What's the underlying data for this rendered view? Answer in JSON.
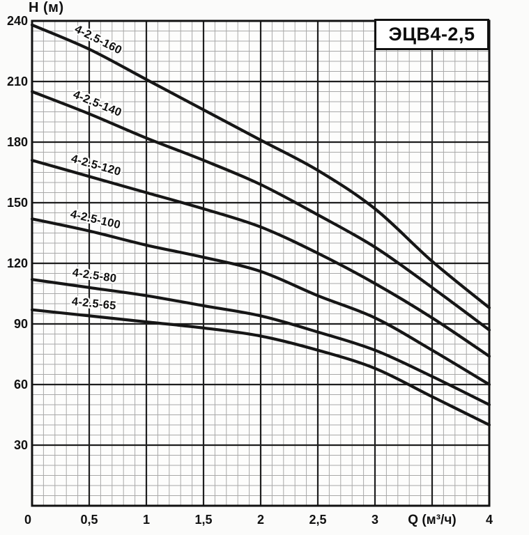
{
  "chart_data": {
    "type": "line",
    "title": "ЭЦВ4-2,5",
    "xlabel": "Q (м³/ч)",
    "ylabel": "H (м)",
    "x": [
      0,
      0.5,
      1,
      1.5,
      2,
      2.5,
      3,
      3.5,
      4
    ],
    "series": [
      {
        "name": "4-2.5-160",
        "values": [
          238,
          226,
          211,
          196,
          181,
          166,
          147,
          121,
          98
        ]
      },
      {
        "name": "4-2.5-140",
        "values": [
          205,
          194,
          182,
          171,
          159,
          144,
          128,
          108,
          87
        ]
      },
      {
        "name": "4-2.5-120",
        "values": [
          171,
          163,
          155,
          147,
          138,
          125,
          110,
          93,
          74
        ]
      },
      {
        "name": "4-2.5-100",
        "values": [
          142,
          136,
          129,
          123,
          116,
          104,
          93,
          77,
          60
        ]
      },
      {
        "name": "4-2.5-80",
        "values": [
          112,
          108,
          104,
          99,
          94,
          86,
          77,
          64,
          50
        ]
      },
      {
        "name": "4-2.5-65",
        "values": [
          97,
          94,
          91,
          88,
          84,
          77,
          68,
          54,
          40
        ]
      }
    ],
    "xlim": [
      0,
      4
    ],
    "ylim": [
      0,
      240
    ],
    "x_ticks": [
      {
        "v": 0,
        "label": "0"
      },
      {
        "v": 0.5,
        "label": "0,5"
      },
      {
        "v": 1,
        "label": "1"
      },
      {
        "v": 1.5,
        "label": "1,5"
      },
      {
        "v": 2,
        "label": "2"
      },
      {
        "v": 2.5,
        "label": "2,5"
      },
      {
        "v": 3,
        "label": "3"
      },
      {
        "v": 4,
        "label": "4"
      }
    ],
    "xlabel_at": 3.5,
    "y_ticks": [
      {
        "v": 240,
        "label": "240"
      },
      {
        "v": 210,
        "label": "210"
      },
      {
        "v": 180,
        "label": "180"
      },
      {
        "v": 150,
        "label": "150"
      },
      {
        "v": 120,
        "label": "120"
      },
      {
        "v": 90,
        "label": "90"
      },
      {
        "v": 60,
        "label": "60"
      },
      {
        "v": 30,
        "label": "30"
      }
    ],
    "grid": {
      "on": true,
      "x_minor": 0.1,
      "x_major": 0.5,
      "y_minor": 5,
      "y_major": 30
    },
    "legend_position": "labels-on-curves",
    "colors": {
      "curve": "#161616",
      "grid_minor": "#a8a8a8",
      "grid_major": "#1e1e1e",
      "border": "#111111",
      "background": "#fdfdfc"
    },
    "label_anchor_q": 0.53
  }
}
